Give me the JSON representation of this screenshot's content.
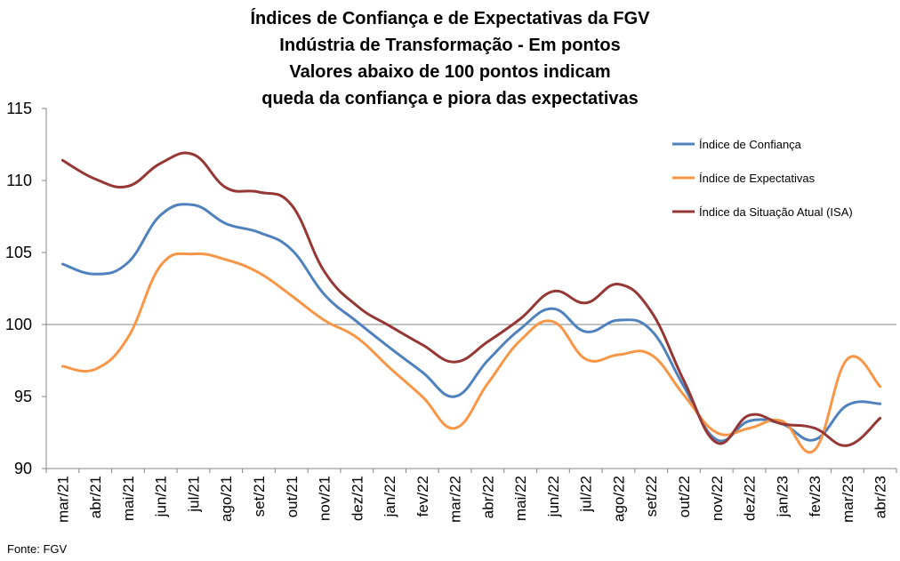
{
  "title_lines": [
    "Índices de Confiança e de Expectativas da FGV",
    "Indústria de Transformação - Em pontos",
    "Valores abaixo de 100 pontos indicam",
    "queda da confiança e piora das expectativas"
  ],
  "source": "Fonte: FGV",
  "chart_data": {
    "type": "line",
    "categories": [
      "mar/21",
      "abr/21",
      "mai/21",
      "jun/21",
      "jul/21",
      "ago/21",
      "set/21",
      "out/21",
      "nov/21",
      "dez/21",
      "jan/22",
      "fev/22",
      "mar/22",
      "abr/22",
      "mai/22",
      "jun/22",
      "jul/22",
      "ago/22",
      "set/22",
      "out/22",
      "nov/22",
      "dez/22",
      "jan/23",
      "fev/23",
      "mar/23",
      "abr/23"
    ],
    "ylim": [
      90,
      115
    ],
    "yticks": [
      90,
      95,
      100,
      105,
      110,
      115
    ],
    "reference_line": 100,
    "grid": false,
    "legend_position": "top-right",
    "series": [
      {
        "name": "Índice de Confiança",
        "color": "#4F81BD",
        "values": [
          104.2,
          103.5,
          104.3,
          107.6,
          108.3,
          107.0,
          106.4,
          105.2,
          102.1,
          100.2,
          98.4,
          96.7,
          95.0,
          97.5,
          99.7,
          101.1,
          99.5,
          100.3,
          99.6,
          95.7,
          92.0,
          93.3,
          93.1,
          92.0,
          94.4,
          94.5
        ]
      },
      {
        "name": "Índice de Expectativas",
        "color": "#F79646",
        "values": [
          97.1,
          96.9,
          99.1,
          104.1,
          104.9,
          104.5,
          103.6,
          102.0,
          100.3,
          99.1,
          97.0,
          95.0,
          92.8,
          95.9,
          98.9,
          100.2,
          97.6,
          97.9,
          97.9,
          95.1,
          92.5,
          92.8,
          93.3,
          91.3,
          97.6,
          95.7
        ]
      },
      {
        "name": "Índice da Situação Atual (ISA)",
        "color": "#953735",
        "values": [
          111.4,
          110.1,
          109.6,
          111.2,
          111.8,
          109.5,
          109.2,
          108.3,
          103.7,
          101.3,
          99.9,
          98.6,
          97.4,
          98.8,
          100.4,
          102.3,
          101.5,
          102.8,
          100.9,
          96.1,
          91.8,
          93.7,
          93.1,
          92.8,
          91.6,
          93.5
        ]
      }
    ]
  }
}
